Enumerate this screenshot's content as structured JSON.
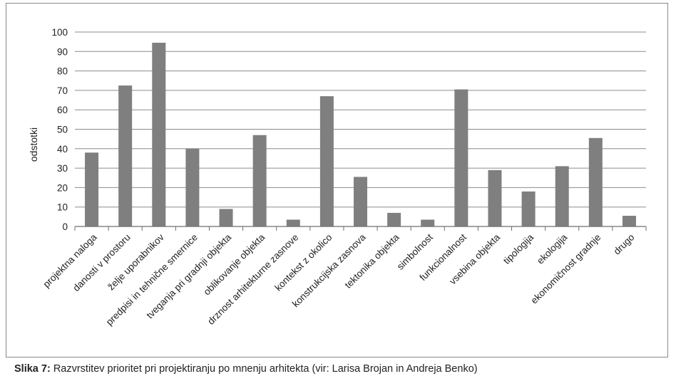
{
  "caption": {
    "figure_label": "Slika 7:",
    "text": "Razvrstitev prioritet pri projektiranju po mnenju arhitekta (vir: Larisa Brojan in Andreja Benko)"
  },
  "colors": {
    "bar": "#7f7f7f",
    "grid": "#8c8c8c",
    "axis": "#6e6e6e",
    "text": "#222222"
  },
  "chart_data": {
    "type": "bar",
    "title": "",
    "xlabel": "",
    "ylabel": "odstotki",
    "ylim": [
      0,
      100
    ],
    "yticks": [
      0,
      10,
      20,
      30,
      40,
      50,
      60,
      70,
      80,
      90,
      100
    ],
    "grid": true,
    "legend": "none",
    "categories": [
      "projektna naloga",
      "danosti v prostoru",
      "želje uporabnikov",
      "predpisi in tehnične smernice",
      "tveganja pri gradnji objekta",
      "oblikovanje objekta",
      "drznost arhitekturne zasnove",
      "kontekst z okolico",
      "konstrukcijska zasnova",
      "tektonika objekta",
      "simbolnost",
      "funkcionalnost",
      "vsebina objekta",
      "tipologija",
      "ekologija",
      "ekonomičnost gradnje",
      "drugo"
    ],
    "values": [
      38,
      72.5,
      94.5,
      40,
      9,
      47,
      3.5,
      67,
      25.5,
      7,
      3.5,
      70.5,
      29,
      18,
      31,
      45.5,
      5.5
    ]
  }
}
